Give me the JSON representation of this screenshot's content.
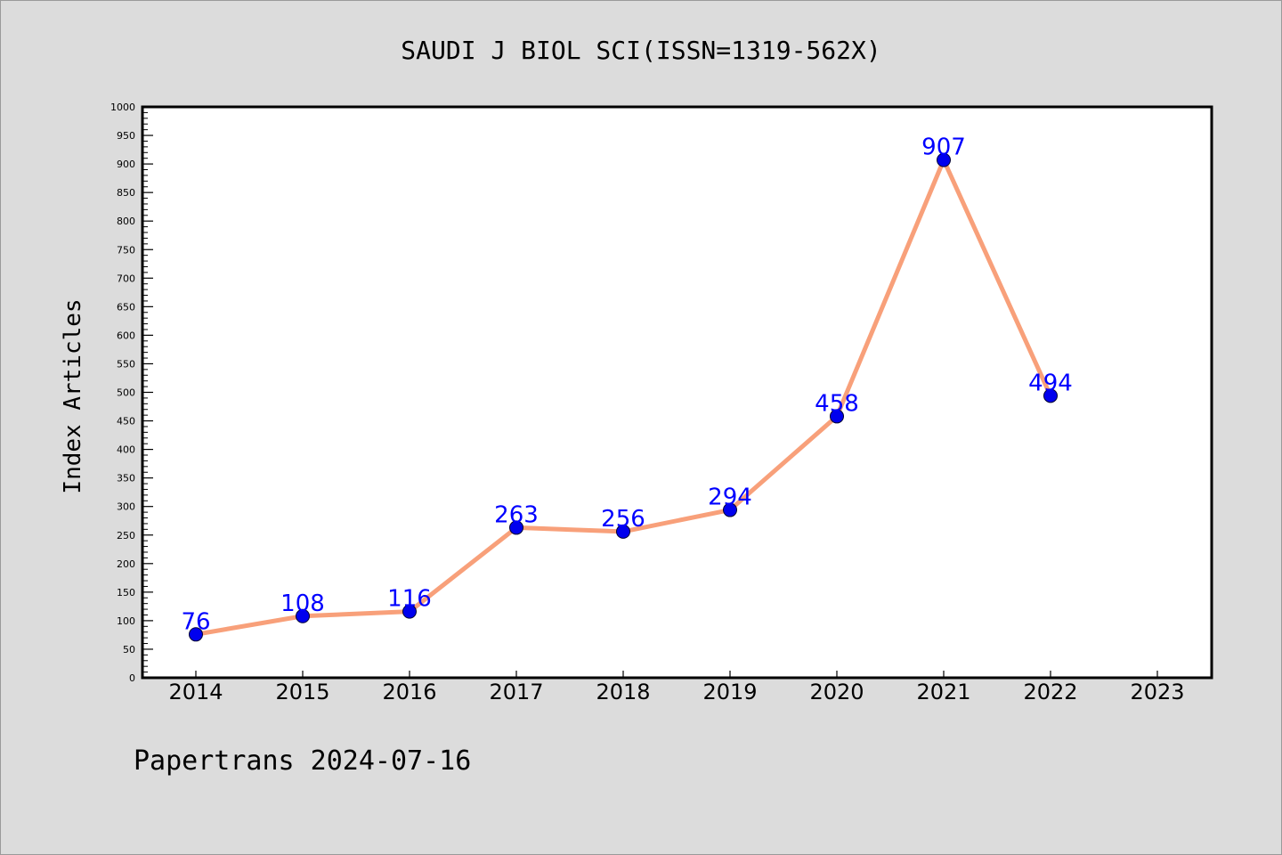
{
  "chart_data": {
    "type": "line",
    "title": "SAUDI J BIOL SCI(ISSN=1319-562X)",
    "ylabel": "Index Articles",
    "xlabel": "",
    "categories": [
      "2014",
      "2015",
      "2016",
      "2017",
      "2018",
      "2019",
      "2020",
      "2021",
      "2022",
      "2023"
    ],
    "x_ticks": [
      "2014",
      "2015",
      "2016",
      "2017",
      "2018",
      "2019",
      "2020",
      "2021",
      "2022",
      "2023"
    ],
    "series": [
      {
        "values": [
          76,
          108,
          116,
          263,
          256,
          294,
          458,
          907,
          494,
          null
        ],
        "line_color": "#f8a07a",
        "marker_color": "#0000ee",
        "label_color": "#0000ff"
      }
    ],
    "data_labels": [
      "76",
      "108",
      "116",
      "263",
      "256",
      "294",
      "458",
      "907",
      "494",
      ""
    ],
    "ylim": [
      0,
      1000
    ],
    "y_ticks": [
      "0",
      "50",
      "100",
      "150",
      "200",
      "250",
      "300",
      "350",
      "400",
      "450",
      "500",
      "550",
      "600",
      "650",
      "700",
      "750",
      "800",
      "850",
      "900",
      "950",
      "1000"
    ],
    "grid": false,
    "legend": "none"
  },
  "footer": "Papertrans 2024-07-16",
  "colors": {
    "background": "#dcdcdc",
    "plot_background": "#ffffff",
    "axis": "#000000"
  }
}
